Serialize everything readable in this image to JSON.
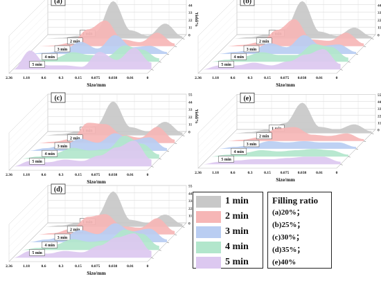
{
  "chart_data": {
    "type": "area",
    "series_colors": [
      "#c8c8c8",
      "#f6b6b6",
      "#b9cdf2",
      "#b2e6cc",
      "#dcc8f0"
    ],
    "categories": [
      "2.36",
      "1.18",
      "0.6",
      "0.3",
      "0.15",
      "0.075",
      "0.038",
      "0.01",
      "0"
    ],
    "xlabel": "Size/mm",
    "ylabel": "Yield/%",
    "yticks": [
      "55",
      "44",
      "33",
      "22",
      "11",
      "0"
    ],
    "ylim": [
      0,
      55
    ],
    "series_names": [
      "1 min",
      "2 min",
      "3 min",
      "4 min",
      "5 min"
    ],
    "panels": [
      {
        "label": "(a)",
        "series": [
          {
            "name": "1 min",
            "values": [
              0,
              1,
              4,
              10,
              55,
              12,
              4,
              22,
              3
            ]
          },
          {
            "name": "2 min",
            "values": [
              0,
              1,
              5,
              25,
              38,
              10,
              6,
              20,
              4
            ]
          },
          {
            "name": "3 min",
            "values": [
              0,
              2,
              5,
              18,
              8,
              28,
              10,
              12,
              3
            ]
          },
          {
            "name": "4 min",
            "values": [
              0,
              3,
              6,
              14,
              10,
              8,
              24,
              18,
              5
            ]
          },
          {
            "name": "5 min",
            "values": [
              0,
              28,
              6,
              6,
              4,
              26,
              14,
              32,
              10
            ]
          }
        ]
      },
      {
        "label": "(b)",
        "series": [
          {
            "name": "1 min",
            "values": [
              0,
              2,
              6,
              14,
              55,
              10,
              4,
              16,
              3
            ]
          },
          {
            "name": "2 min",
            "values": [
              0,
              2,
              6,
              24,
              40,
              10,
              8,
              20,
              4
            ]
          },
          {
            "name": "3 min",
            "values": [
              0,
              3,
              6,
              16,
              10,
              28,
              12,
              14,
              3
            ]
          },
          {
            "name": "4 min",
            "values": [
              0,
              3,
              8,
              14,
              10,
              10,
              26,
              22,
              6
            ]
          },
          {
            "name": "5 min",
            "values": [
              0,
              6,
              6,
              10,
              6,
              12,
              22,
              30,
              8
            ]
          }
        ]
      },
      {
        "label": "(c)",
        "series": [
          {
            "name": "1 min",
            "values": [
              0,
              2,
              6,
              14,
              50,
              12,
              6,
              20,
              4
            ]
          },
          {
            "name": "2 min",
            "values": [
              0,
              2,
              6,
              30,
              28,
              12,
              8,
              24,
              5
            ]
          },
          {
            "name": "3 min",
            "values": [
              0,
              4,
              8,
              18,
              12,
              26,
              16,
              20,
              4
            ]
          },
          {
            "name": "4 min",
            "values": [
              0,
              3,
              8,
              16,
              12,
              14,
              34,
              22,
              6
            ]
          },
          {
            "name": "5 min",
            "values": [
              0,
              8,
              6,
              10,
              8,
              16,
              28,
              38,
              10
            ]
          }
        ]
      },
      {
        "label": "(d)",
        "series": [
          {
            "name": "1 min",
            "values": [
              0,
              2,
              6,
              14,
              52,
              10,
              6,
              18,
              4
            ]
          },
          {
            "name": "2 min",
            "values": [
              0,
              2,
              8,
              26,
              30,
              12,
              10,
              24,
              5
            ]
          },
          {
            "name": "3 min",
            "values": [
              0,
              4,
              8,
              18,
              12,
              28,
              16,
              20,
              4
            ]
          },
          {
            "name": "4 min",
            "values": [
              0,
              3,
              8,
              16,
              12,
              14,
              30,
              24,
              6
            ]
          },
          {
            "name": "5 min",
            "values": [
              0,
              10,
              6,
              10,
              8,
              18,
              30,
              36,
              10
            ]
          }
        ]
      },
      {
        "label": "(e)",
        "series": [
          {
            "name": "1 min",
            "values": [
              0,
              2,
              6,
              16,
              48,
              10,
              6,
              14,
              3
            ]
          },
          {
            "name": "2 min",
            "values": [
              0,
              2,
              6,
              20,
              22,
              10,
              8,
              12,
              3
            ]
          },
          {
            "name": "3 min",
            "values": [
              0,
              3,
              6,
              12,
              10,
              12,
              10,
              10,
              3
            ]
          },
          {
            "name": "4 min",
            "values": [
              0,
              3,
              6,
              10,
              8,
              10,
              12,
              10,
              3
            ]
          },
          {
            "name": "5 min",
            "values": [
              0,
              4,
              6,
              8,
              8,
              10,
              12,
              12,
              4
            ]
          }
        ]
      }
    ]
  },
  "legend": {
    "items": [
      {
        "label": "1 min",
        "color": "#c8c8c8"
      },
      {
        "label": "2 min",
        "color": "#f6b6b6"
      },
      {
        "label": "3 min",
        "color": "#b9cdf2"
      },
      {
        "label": "4 min",
        "color": "#b2e6cc"
      },
      {
        "label": "5 min",
        "color": "#dcc8f0"
      }
    ]
  },
  "filling_ratio": {
    "title": "Filling ratio",
    "items": [
      "(a)20%；",
      "(b)25%；",
      "(c)30%；",
      "(d)35%；",
      "(e)40%"
    ]
  }
}
